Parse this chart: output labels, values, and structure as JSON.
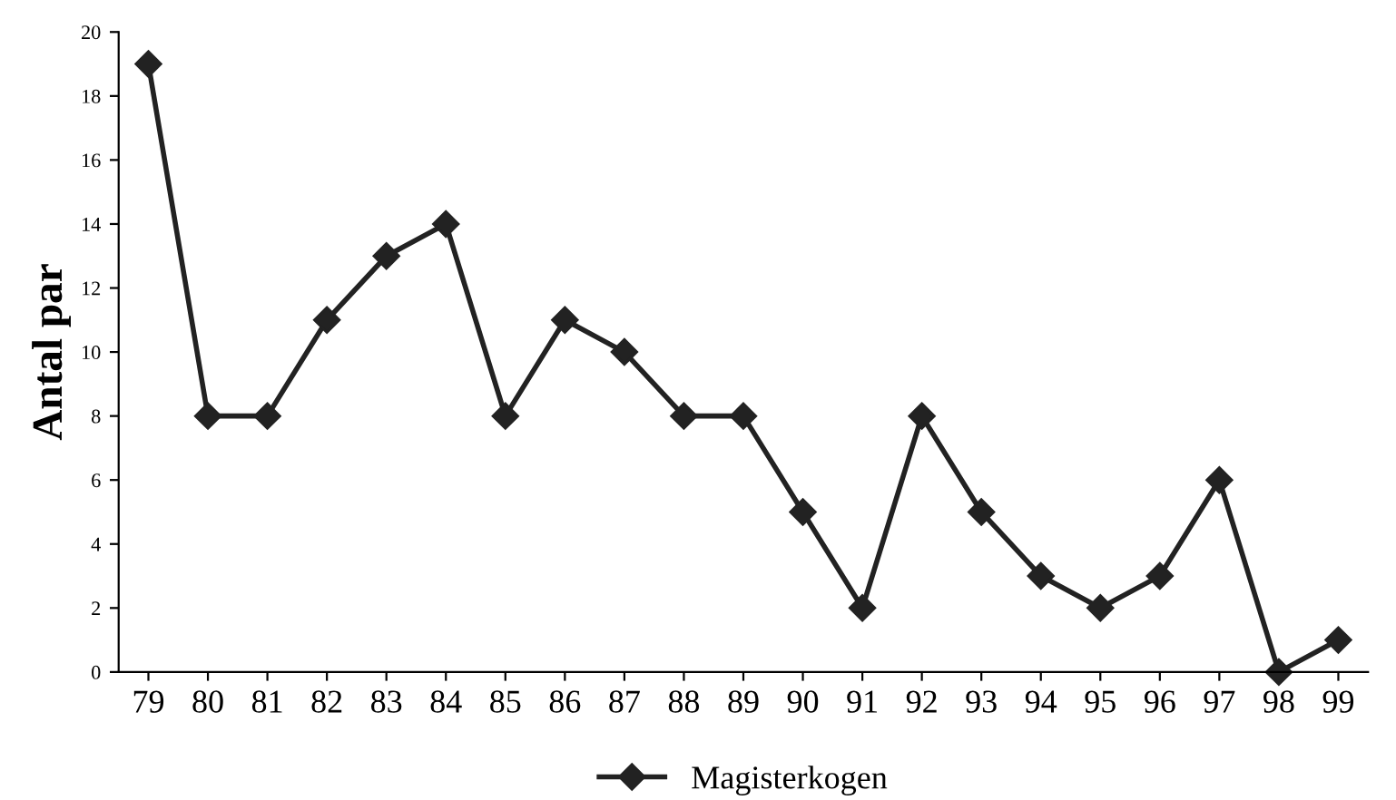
{
  "chart_data": {
    "type": "line",
    "ylabel": "Antal par",
    "categories": [
      "79",
      "80",
      "81",
      "82",
      "83",
      "84",
      "85",
      "86",
      "87",
      "88",
      "89",
      "90",
      "91",
      "92",
      "93",
      "94",
      "95",
      "96",
      "97",
      "98",
      "99"
    ],
    "series": [
      {
        "name": "Magisterkogen",
        "color": "#222222",
        "values": [
          19,
          8,
          8,
          11,
          13,
          14,
          8,
          11,
          10,
          8,
          8,
          5,
          2,
          8,
          5,
          3,
          2,
          3,
          6,
          0,
          1
        ]
      }
    ],
    "ylim": [
      0,
      20
    ],
    "yticks": [
      0,
      2,
      4,
      6,
      8,
      10,
      12,
      14,
      16,
      18,
      20
    ],
    "grid": false,
    "legend": "bottom",
    "marker": "diamond",
    "line_style": "solid"
  }
}
